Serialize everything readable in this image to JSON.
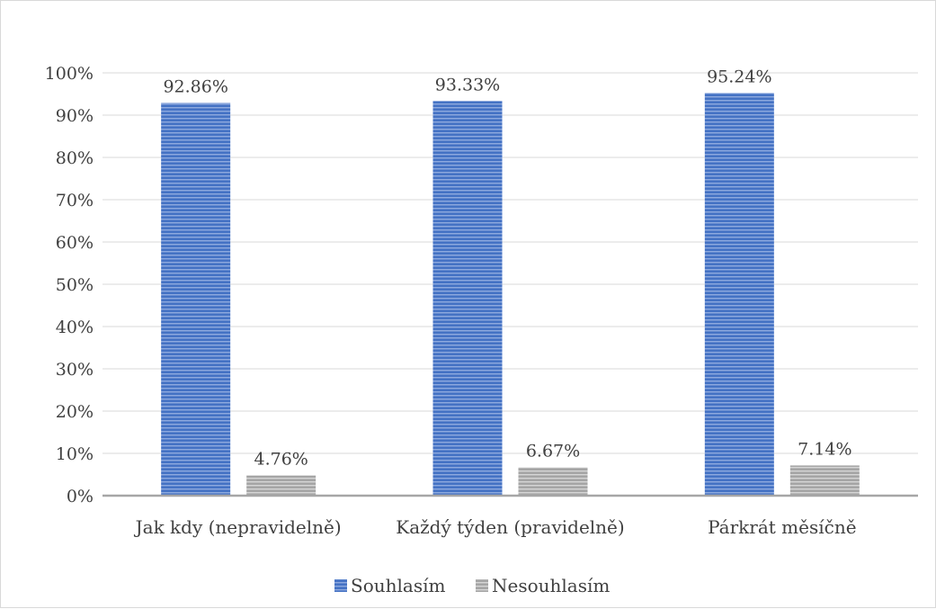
{
  "chart_data": {
    "type": "bar",
    "title": "",
    "xlabel": "",
    "ylabel": "",
    "categories": [
      "Jak kdy (nepravidelně)",
      "Každý týden (pravidelně)",
      "Párkrát měsíčně"
    ],
    "series": [
      {
        "name": "Souhlasím",
        "values": [
          92.86,
          93.33,
          95.24
        ],
        "labels": [
          "92.86%",
          "93.33%",
          "95.24%"
        ],
        "color": "#4472c4"
      },
      {
        "name": "Nesouhlasím",
        "values": [
          4.76,
          6.67,
          7.14
        ],
        "labels": [
          "4.76%",
          "6.67%",
          "7.14%"
        ],
        "color": "#a5a5a5"
      }
    ],
    "ylim": [
      0,
      100
    ],
    "yticks": [
      0,
      10,
      20,
      30,
      40,
      50,
      60,
      70,
      80,
      90,
      100
    ],
    "ytick_labels": [
      "0%",
      "10%",
      "20%",
      "30%",
      "40%",
      "50%",
      "60%",
      "70%",
      "80%",
      "90%",
      "100%"
    ],
    "grid": true,
    "legend_position": "bottom"
  }
}
